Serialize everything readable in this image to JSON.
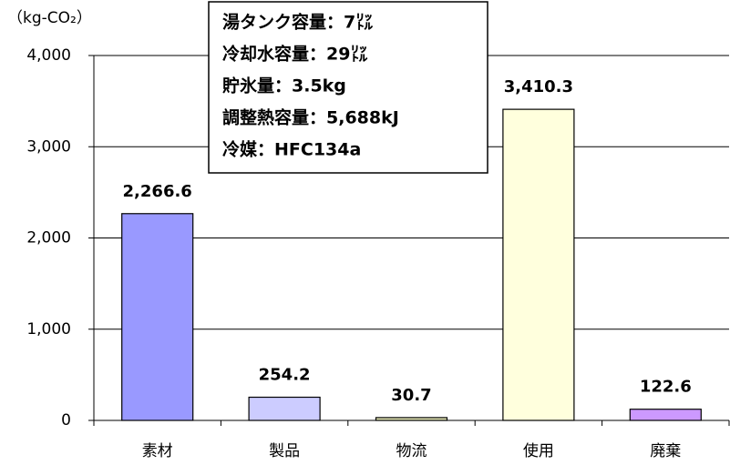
{
  "chart_data": {
    "type": "bar",
    "ylabel": "（kg-CO₂）",
    "categories": [
      "素材",
      "製品",
      "物流",
      "使用",
      "廃棄"
    ],
    "values": [
      2266.6,
      254.2,
      30.7,
      3410.3,
      122.6
    ],
    "value_labels": [
      "2,266.6",
      "254.2",
      "30.7",
      "3,410.3",
      "122.6"
    ],
    "colors": [
      "#9999ff",
      "#ccccff",
      "#e8ebb8",
      "#ffffdd",
      "#cc99ff"
    ],
    "ylim": [
      0,
      4000
    ],
    "yticks": [
      0,
      {
        "value": 1000,
        "label": "1,000"
      },
      {
        "value": 2000,
        "label": "2,000"
      },
      {
        "value": 3000,
        "label": "3,000"
      },
      {
        "value": 4000,
        "label": "4,000"
      }
    ],
    "grid": true,
    "annotation": [
      "湯タンク容量：7㍑",
      "冷却水容量：29㍑",
      "貯氷量：3.5kg",
      "調整熱容量：5,688kJ",
      "冷媒：HFC134a"
    ]
  }
}
